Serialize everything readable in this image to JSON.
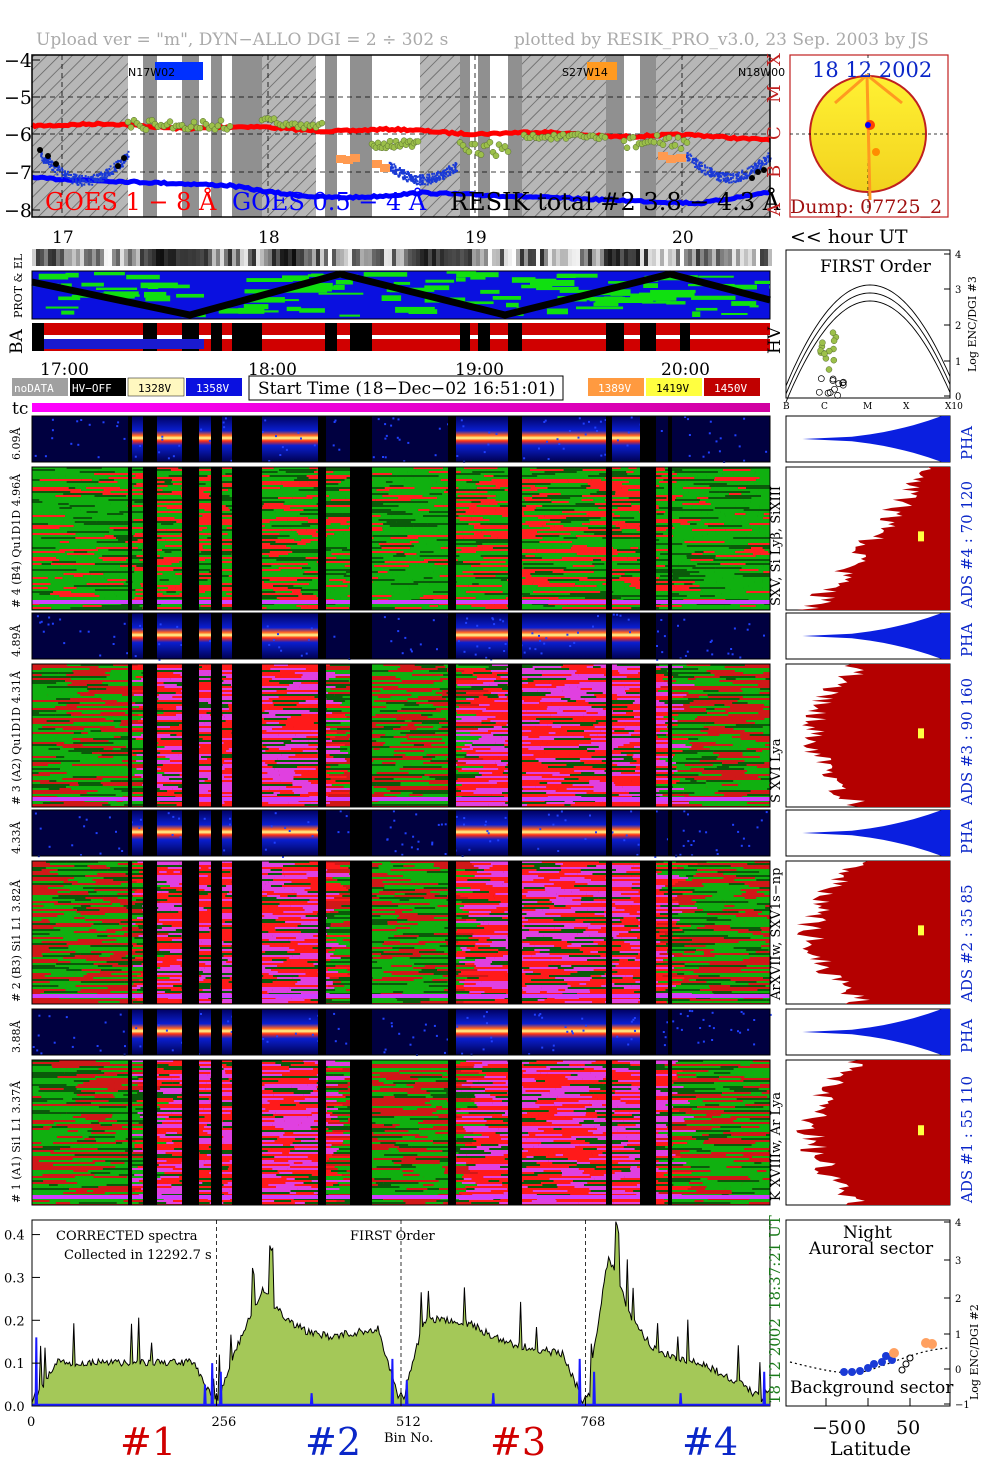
{
  "header": {
    "upload": "Upload ver = \"m\", DYN−ALLO DGI =   2 ÷ 302 s",
    "plotted": "plotted by RESIK_PRO_v3.0, 23 Sep. 2003 by JS"
  },
  "goes_panel": {
    "yticks": [
      "−4",
      "−5",
      "−6",
      "−7",
      "−8"
    ],
    "class_labels": [
      "X",
      "M",
      "C",
      "B",
      "A"
    ],
    "regions": [
      "N17W02",
      "S27W14",
      "N18W00"
    ],
    "label_goes18": "GOES 1 − 8 Å",
    "label_goes054": "GOES 0.5 − 4 Å",
    "label_resik": "RESIK total #2  3.8 − 4.3 Å",
    "colors": {
      "goes18": "#ff0000",
      "goes054": "#0000ff",
      "resik": "#9cc04a",
      "hatch": "#888888"
    }
  },
  "sun": {
    "date": "18 12 2002",
    "dump": "Dump: 07725_2"
  },
  "orbit": {
    "hour_ticks": [
      "17",
      "18",
      "19",
      "20"
    ],
    "hour_label": "<< hour UT",
    "prot_label": "PROT & EL",
    "ba_label": "BA",
    "hv_label": "HV",
    "time_ticks": [
      "17:00",
      "18:00",
      "19:00",
      "20:00"
    ]
  },
  "legend": {
    "nodata": "noDATA",
    "hvoff": "HV−OFF",
    "v1": "1328V",
    "v2": "1358V",
    "start": "Start Time (18−Dec−02 16:51:01)",
    "v3": "1389V",
    "v4": "1419V",
    "v5": "1450V",
    "tc": "tc"
  },
  "first_order": {
    "title": "FIRST Order",
    "ylabel": "Log ENC/DGI #3",
    "xticks": [
      "B",
      "C",
      "M",
      "X",
      "X10"
    ],
    "yticks": [
      "0",
      "1",
      "2",
      "3",
      "4"
    ]
  },
  "spectra_rows": [
    {
      "left_label": "6.09Å",
      "right": "PHA"
    },
    {
      "left_label": "# 4 (B4) Qu1D1D 4.96Å",
      "mid": "SXV, Si Lyβ, SiXIII",
      "right": "ADS #4 :   70 120"
    },
    {
      "left_label": "4.89Å",
      "right": "PHA"
    },
    {
      "left_label": "# 3 (A2) Qu1D1D 4.31Å",
      "mid": "S XVI Lya",
      "right": "ADS #3 :   90 160"
    },
    {
      "left_label": "4.33Å",
      "right": "PHA"
    },
    {
      "left_label": "# 2 (B3) Si1 L1  3.82Å",
      "mid": "ArXVIIw, SXV1s−np",
      "right": "ADS #2 :   35  85"
    },
    {
      "left_label": "3.88Å",
      "right": "PHA"
    },
    {
      "left_label": "# 1 (A1) Si1 L1  3.37Å",
      "mid": "K XVIIIw, Ar Lya",
      "right": "ADS #1 :   55 110"
    }
  ],
  "bottom": {
    "corrected": "CORRECTED spectra",
    "collected": "Collected in 12292.7 s",
    "first_order": "FIRST Order",
    "yticks": [
      "0.0",
      "0.1",
      "0.2",
      "0.3",
      "0.4"
    ],
    "xticks": [
      "0",
      "256",
      "512",
      "768"
    ],
    "xlabel": "Bin No.",
    "channels": [
      "#1",
      "#2",
      "#3",
      "#4"
    ],
    "time": "18:37:21 UT",
    "date": "18 12 2002"
  },
  "latitude_panel": {
    "night": "Night",
    "auroral": "Auroral sector",
    "background": "Background sector",
    "ylabel": "Log ENC/DGI #2",
    "xlabel": "Latitude",
    "xticks": [
      "−50",
      "0",
      "50"
    ],
    "yticks": [
      "−1",
      "0",
      "1",
      "2",
      "3",
      "4"
    ]
  },
  "chart_data": {
    "type": "line",
    "title": "Upload ver = \"m\", DYN−ALLO DGI =   2 ÷ 302 s",
    "xlabel": "Bin No.",
    "ylabel": "",
    "xlim": [
      0,
      1024
    ],
    "ylim": [
      0,
      0.42
    ],
    "series": [
      {
        "name": "",
        "x": [
          0,
          32,
          64,
          96,
          128,
          160,
          192,
          224,
          256,
          288,
          320,
          352,
          384,
          416,
          448,
          480,
          512,
          544,
          576,
          608,
          640,
          672,
          704,
          736,
          768,
          800,
          832,
          864,
          896,
          928,
          960,
          992,
          1024
        ],
        "values": [
          0.0,
          0.1,
          0.1,
          0.1,
          0.1,
          0.1,
          0.1,
          0.1,
          0.0,
          0.15,
          0.27,
          0.2,
          0.17,
          0.16,
          0.17,
          0.18,
          0.0,
          0.2,
          0.2,
          0.19,
          0.16,
          0.14,
          0.13,
          0.12,
          0.0,
          0.35,
          0.2,
          0.13,
          0.11,
          0.1,
          0.07,
          0.04,
          0.0
        ]
      }
    ]
  }
}
